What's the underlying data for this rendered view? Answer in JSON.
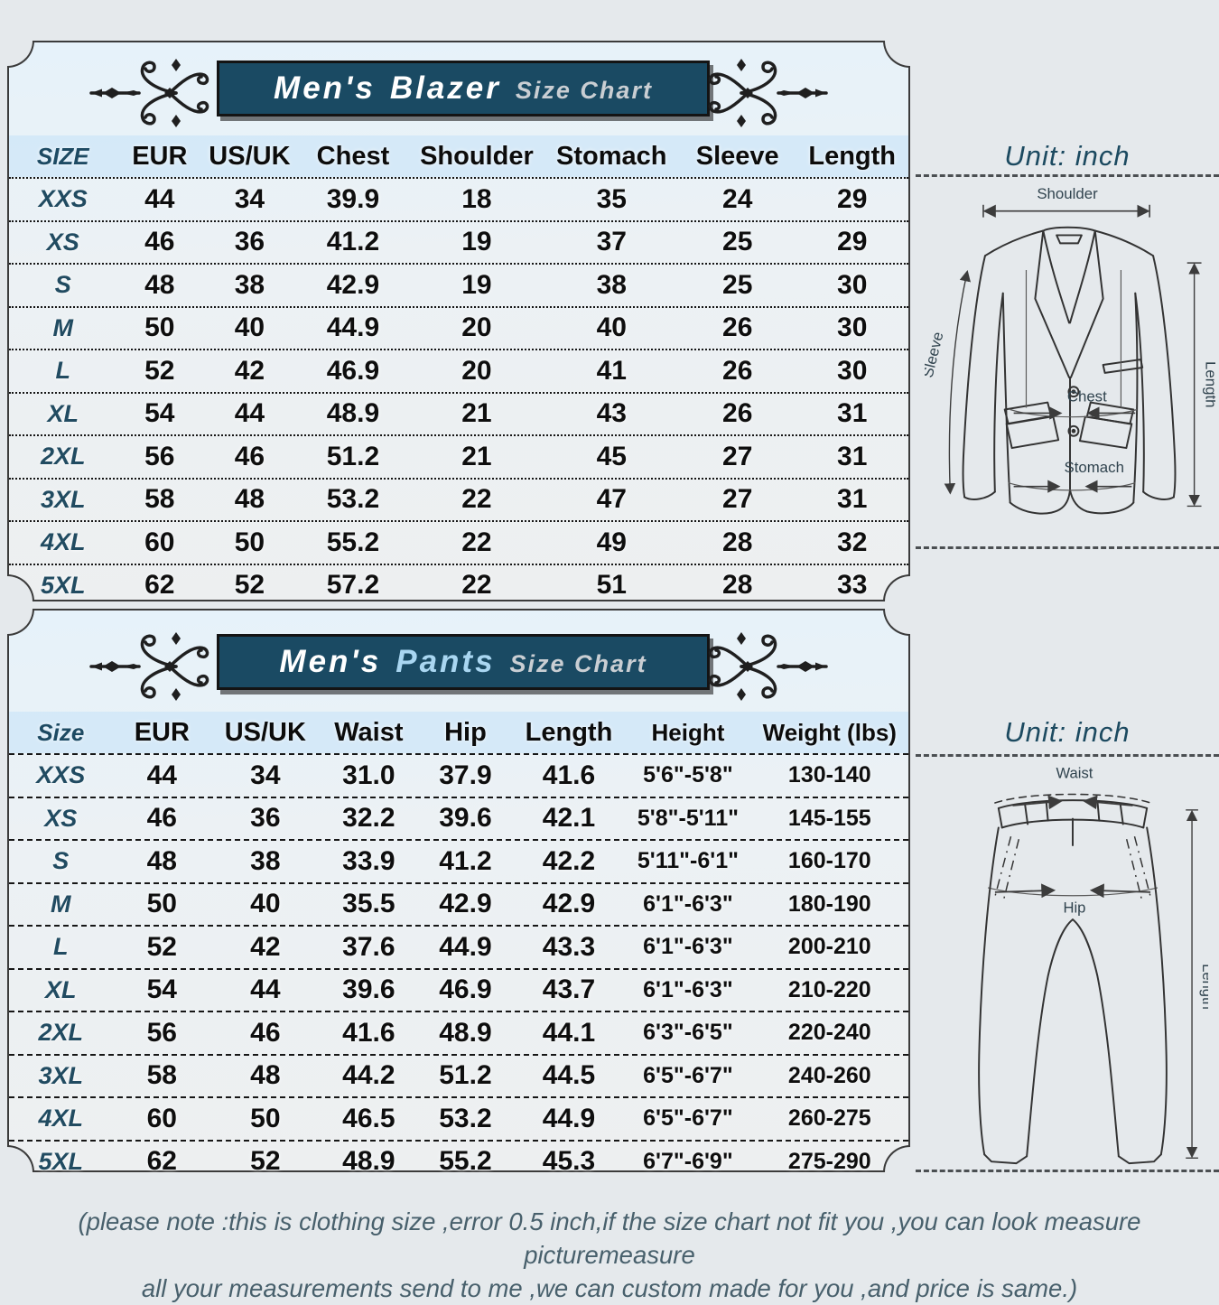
{
  "unit": {
    "label": "Unit: inch"
  },
  "blazer": {
    "title_a": "Men's",
    "title_b": "Blazer",
    "subtitle": "Size Chart",
    "columns": [
      "SIZE",
      "EUR",
      "US/UK",
      "Chest",
      "Shoulder",
      "Stomach",
      "Sleeve",
      "Length"
    ],
    "rows": [
      [
        "XXS",
        "44",
        "34",
        "39.9",
        "18",
        "35",
        "24",
        "29"
      ],
      [
        "XS",
        "46",
        "36",
        "41.2",
        "19",
        "37",
        "25",
        "29"
      ],
      [
        "S",
        "48",
        "38",
        "42.9",
        "19",
        "38",
        "25",
        "30"
      ],
      [
        "M",
        "50",
        "40",
        "44.9",
        "20",
        "40",
        "26",
        "30"
      ],
      [
        "L",
        "52",
        "42",
        "46.9",
        "20",
        "41",
        "26",
        "30"
      ],
      [
        "XL",
        "54",
        "44",
        "48.9",
        "21",
        "43",
        "26",
        "31"
      ],
      [
        "2XL",
        "56",
        "46",
        "51.2",
        "21",
        "45",
        "27",
        "31"
      ],
      [
        "3XL",
        "58",
        "48",
        "53.2",
        "22",
        "47",
        "27",
        "31"
      ],
      [
        "4XL",
        "60",
        "50",
        "55.2",
        "22",
        "49",
        "28",
        "32"
      ],
      [
        "5XL",
        "62",
        "52",
        "57.2",
        "22",
        "51",
        "28",
        "33"
      ]
    ],
    "diagram": {
      "shoulder": "Shoulder",
      "chest": "Chest",
      "stomach": "Stomach",
      "sleeve": "Sleeve",
      "length": "Length"
    }
  },
  "pants": {
    "title_a": "Men's",
    "title_b": "Pants",
    "subtitle": "Size Chart",
    "columns": [
      "Size",
      "EUR",
      "US/UK",
      "Waist",
      "Hip",
      "Length",
      "Height",
      "Weight (lbs)"
    ],
    "rows": [
      [
        "XXS",
        "44",
        "34",
        "31.0",
        "37.9",
        "41.6",
        "5'6\"-5'8\"",
        "130-140"
      ],
      [
        "XS",
        "46",
        "36",
        "32.2",
        "39.6",
        "42.1",
        "5'8\"-5'11\"",
        "145-155"
      ],
      [
        "S",
        "48",
        "38",
        "33.9",
        "41.2",
        "42.2",
        "5'11\"-6'1\"",
        "160-170"
      ],
      [
        "M",
        "50",
        "40",
        "35.5",
        "42.9",
        "42.9",
        "6'1\"-6'3\"",
        "180-190"
      ],
      [
        "L",
        "52",
        "42",
        "37.6",
        "44.9",
        "43.3",
        "6'1\"-6'3\"",
        "200-210"
      ],
      [
        "XL",
        "54",
        "44",
        "39.6",
        "46.9",
        "43.7",
        "6'1\"-6'3\"",
        "210-220"
      ],
      [
        "2XL",
        "56",
        "46",
        "41.6",
        "48.9",
        "44.1",
        "6'3\"-6'5\"",
        "220-240"
      ],
      [
        "3XL",
        "58",
        "48",
        "44.2",
        "51.2",
        "44.5",
        "6'5\"-6'7\"",
        "240-260"
      ],
      [
        "4XL",
        "60",
        "50",
        "46.5",
        "53.2",
        "44.9",
        "6'5\"-6'7\"",
        "260-275"
      ],
      [
        "5XL",
        "62",
        "52",
        "48.9",
        "55.2",
        "45.3",
        "6'7\"-6'9\"",
        "275-290"
      ]
    ],
    "diagram": {
      "waist": "Waist",
      "hip": "Hip",
      "length": "Length"
    }
  },
  "note": {
    "line1": "(please note :this is clothing size ,error 0.5 inch,if the size chart not fit you ,you can look measure picturemeasure",
    "line2": "all your measurements send to me ,we can custom made for you ,and price is same.)"
  },
  "colors": {
    "banner_bg": "#1a4a63",
    "accent_text": "#1c4a60",
    "pants_highlight": "#a9d6f1"
  }
}
